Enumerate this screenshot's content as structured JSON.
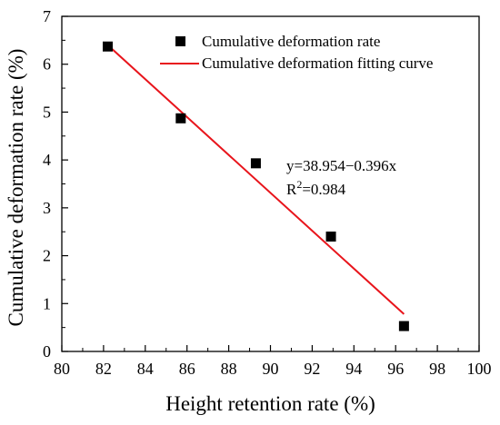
{
  "chart_data": {
    "type": "scatter",
    "title": "",
    "xlabel": "Height retention rate (%)",
    "ylabel": "Cumulative deformation rate (%)",
    "xlim": [
      80,
      100
    ],
    "ylim": [
      0,
      7
    ],
    "xticks": [
      80,
      82,
      84,
      86,
      88,
      90,
      92,
      94,
      96,
      98,
      100
    ],
    "yticks": [
      0,
      1,
      2,
      3,
      4,
      5,
      6,
      7
    ],
    "grid": false,
    "legend_position": "top-right",
    "series": [
      {
        "name": "Cumulative deformation rate",
        "kind": "scatter",
        "marker": "square",
        "color": "#000000",
        "x": [
          82.2,
          85.7,
          89.3,
          92.9,
          96.4
        ],
        "y": [
          6.37,
          4.87,
          3.93,
          2.4,
          0.53
        ]
      },
      {
        "name": "Cumulative deformation fitting curve",
        "kind": "line",
        "color": "#e8141b",
        "x": [
          82.2,
          96.4
        ],
        "y": [
          6.4,
          0.78
        ]
      }
    ],
    "annotation": {
      "equation": "y=38.954−0.396x",
      "r2_prefix": "R",
      "r2_sup": "2",
      "r2_value": "=0.984"
    }
  }
}
